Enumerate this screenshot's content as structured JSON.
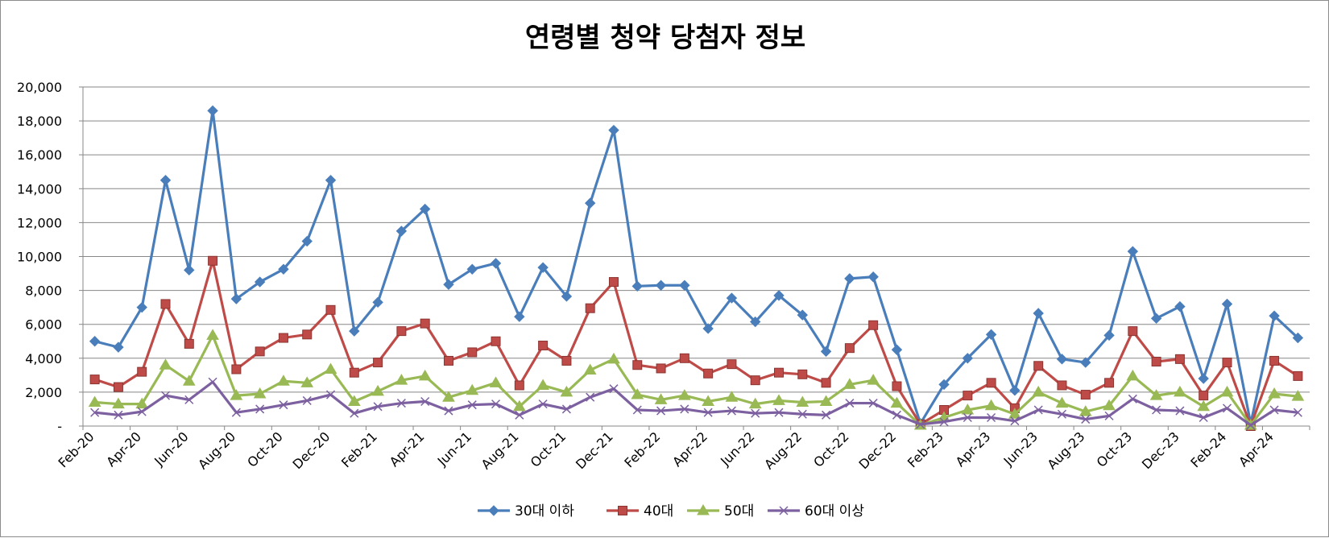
{
  "chart_data": {
    "type": "line",
    "title": "연령별 청약 당첨자 정보",
    "xlabel": "",
    "ylabel": "",
    "ylim": [
      0,
      20000
    ],
    "yticks": [
      0,
      2000,
      4000,
      6000,
      8000,
      10000,
      12000,
      14000,
      16000,
      18000,
      20000
    ],
    "ytick_labels": [
      "-",
      "2,000",
      "4,000",
      "6,000",
      "8,000",
      "10,000",
      "12,000",
      "14,000",
      "16,000",
      "18,000",
      "20,000"
    ],
    "grid": "horizontal",
    "legend_position": "bottom",
    "categories": [
      "Feb-20",
      "Mar-20",
      "Apr-20",
      "May-20",
      "Jun-20",
      "Jul-20",
      "Aug-20",
      "Sep-20",
      "Oct-20",
      "Nov-20",
      "Dec-20",
      "Jan-21",
      "Feb-21",
      "Mar-21",
      "Apr-21",
      "May-21",
      "Jun-21",
      "Jul-21",
      "Aug-21",
      "Sep-21",
      "Oct-21",
      "Nov-21",
      "Dec-21",
      "Jan-22",
      "Feb-22",
      "Mar-22",
      "Apr-22",
      "May-22",
      "Jun-22",
      "Jul-22",
      "Aug-22",
      "Sep-22",
      "Oct-22",
      "Nov-22",
      "Dec-22",
      "Jan-23",
      "Feb-23",
      "Mar-23",
      "Apr-23",
      "May-23",
      "Jun-23",
      "Jul-23",
      "Aug-23",
      "Sep-23",
      "Oct-23",
      "Nov-23",
      "Dec-23",
      "Jan-24",
      "Feb-24",
      "Mar-24",
      "Apr-24",
      "May-24"
    ],
    "tick_labels_shown": [
      "Feb-20",
      "Apr-20",
      "Jun-20",
      "Aug-20",
      "Oct-20",
      "Dec-20",
      "Feb-21",
      "Apr-21",
      "Jun-21",
      "Aug-21",
      "Oct-21",
      "Dec-21",
      "Feb-22",
      "Apr-22",
      "Jun-22",
      "Aug-22",
      "Oct-22",
      "Dec-22",
      "Feb-23",
      "Apr-23",
      "Jun-23",
      "Aug-23",
      "Oct-23",
      "Dec-23",
      "Feb-24",
      "Apr-24"
    ],
    "series": [
      {
        "name": "30대 이하",
        "color": "#4a7ebb",
        "marker": "diamond",
        "values": [
          5000,
          4650,
          7000,
          14500,
          9200,
          18600,
          7500,
          8500,
          9250,
          10900,
          14500,
          5600,
          7300,
          11500,
          12800,
          8350,
          9250,
          9600,
          6450,
          9350,
          7650,
          13150,
          17450,
          8250,
          8300,
          8300,
          5750,
          7550,
          6150,
          7700,
          6550,
          4400,
          8700,
          8800,
          4500,
          150,
          2450,
          4000,
          5400,
          2100,
          6650,
          3950,
          3750,
          5350,
          10300,
          6350,
          7050,
          2800,
          7200,
          150,
          6500,
          5200
        ]
      },
      {
        "name": "40대",
        "color": "#be4b48",
        "marker": "square",
        "values": [
          2750,
          2300,
          3200,
          7200,
          4850,
          9750,
          3350,
          4400,
          5200,
          5400,
          6850,
          3150,
          3750,
          5600,
          6050,
          3850,
          4350,
          5000,
          2400,
          4750,
          3850,
          6950,
          8500,
          3600,
          3400,
          4000,
          3100,
          3650,
          2700,
          3150,
          3050,
          2550,
          4600,
          5950,
          2350,
          100,
          950,
          1800,
          2550,
          1050,
          3550,
          2400,
          1850,
          2550,
          5600,
          3800,
          3950,
          1800,
          3750,
          0,
          3850,
          2950
        ]
      },
      {
        "name": "50대",
        "color": "#98b954",
        "marker": "triangle",
        "values": [
          1400,
          1300,
          1300,
          3600,
          2650,
          5350,
          1800,
          1900,
          2650,
          2550,
          3350,
          1450,
          2050,
          2700,
          2950,
          1700,
          2100,
          2550,
          1150,
          2400,
          2000,
          3300,
          3950,
          1850,
          1550,
          1800,
          1450,
          1700,
          1300,
          1500,
          1400,
          1450,
          2450,
          2700,
          1350,
          50,
          500,
          950,
          1200,
          700,
          2000,
          1350,
          850,
          1200,
          2950,
          1800,
          2000,
          1150,
          2000,
          50,
          1900,
          1750
        ]
      },
      {
        "name": "60대 이상",
        "color": "#7d60a0",
        "marker": "x",
        "values": [
          800,
          650,
          850,
          1800,
          1550,
          2600,
          800,
          1000,
          1250,
          1500,
          1850,
          750,
          1150,
          1350,
          1450,
          900,
          1250,
          1300,
          650,
          1300,
          1000,
          1700,
          2200,
          950,
          900,
          1000,
          800,
          900,
          750,
          800,
          700,
          650,
          1350,
          1350,
          650,
          100,
          250,
          500,
          500,
          300,
          950,
          700,
          400,
          600,
          1600,
          950,
          900,
          500,
          1050,
          50,
          950,
          800
        ]
      }
    ]
  }
}
